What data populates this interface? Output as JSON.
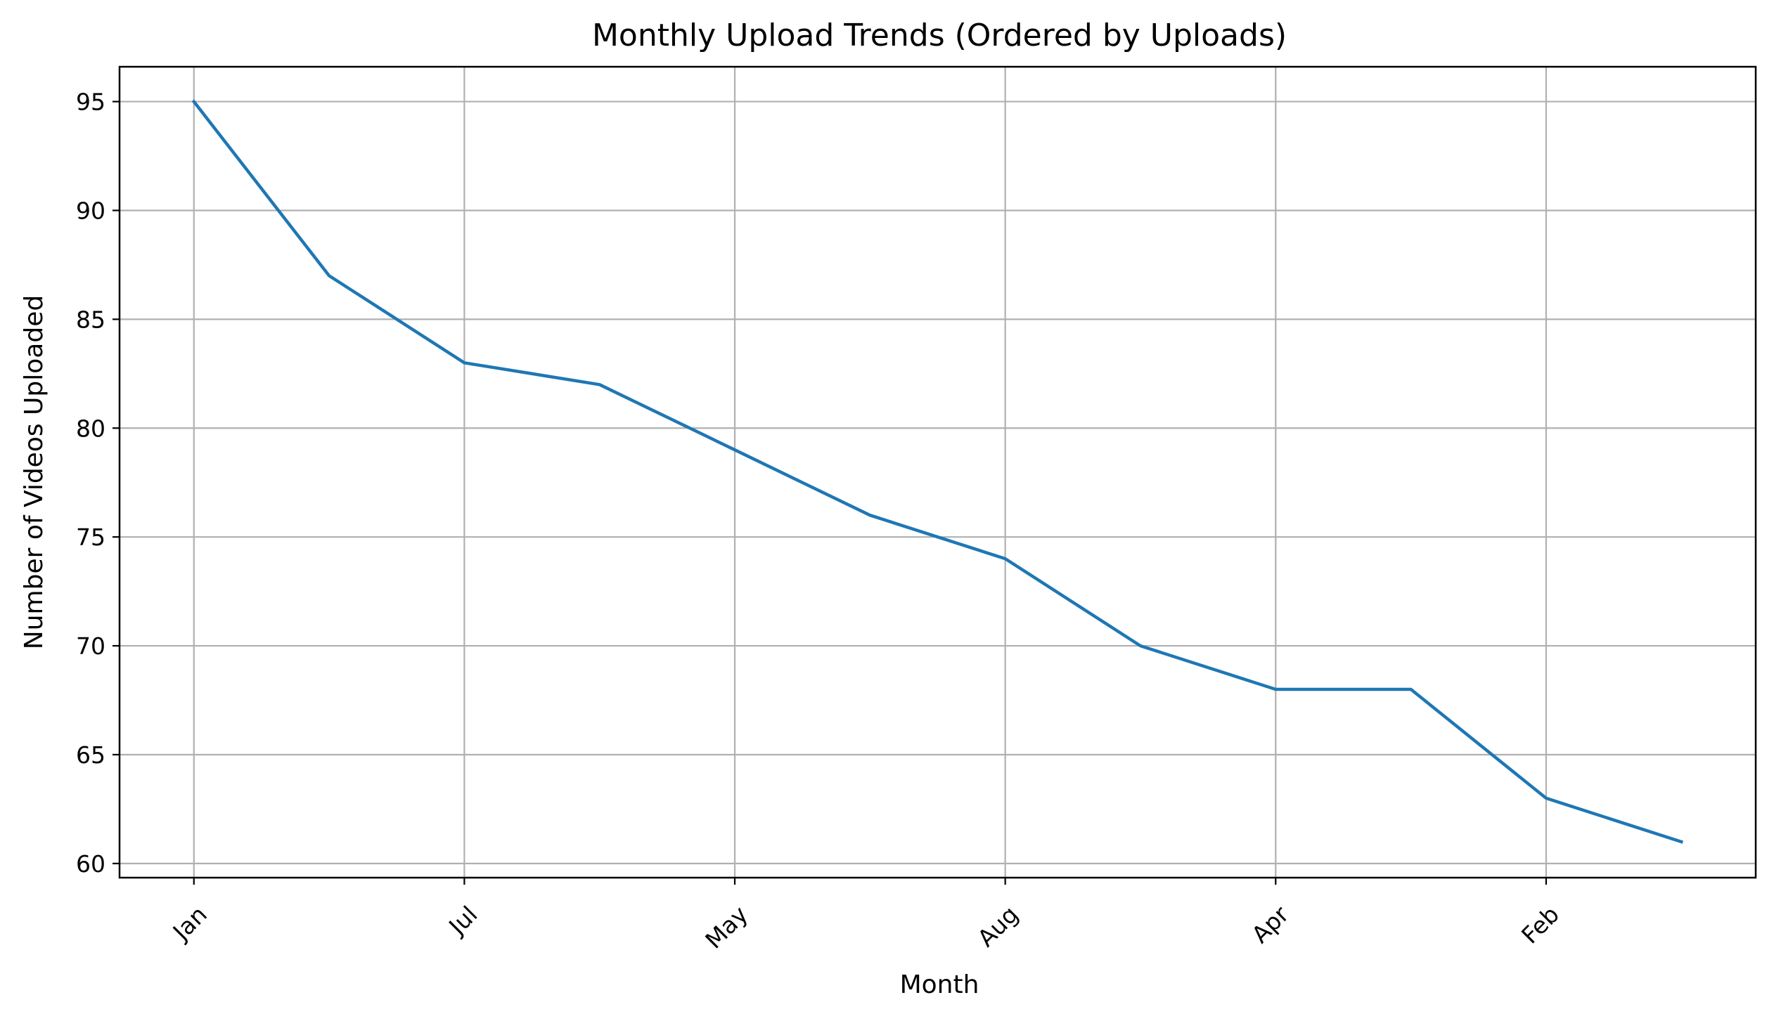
{
  "chart_data": {
    "type": "line",
    "title": "Monthly Upload Trends (Ordered by Uploads)",
    "xlabel": "Month",
    "ylabel": "Number of Videos Uploaded",
    "x_tick_labels": [
      "Jan",
      "Jul",
      "May",
      "Aug",
      "Apr",
      "Feb"
    ],
    "x_tick_positions": [
      0,
      2,
      4,
      6,
      8,
      10
    ],
    "x": [
      0,
      1,
      2,
      3,
      4,
      5,
      6,
      7,
      8,
      9,
      10,
      11
    ],
    "series": [
      {
        "values": [
          95,
          87,
          83,
          82,
          79,
          76,
          74,
          70,
          68,
          68,
          63,
          61
        ],
        "color": "#1f77b4"
      }
    ],
    "xlim": [
      -0.55,
      11.55
    ],
    "ylim": [
      59.35,
      96.6
    ],
    "y_ticks": [
      60,
      65,
      70,
      75,
      80,
      85,
      90,
      95
    ],
    "grid": true,
    "grid_color": "#b0b0b0",
    "x_tick_rotation": 45
  }
}
